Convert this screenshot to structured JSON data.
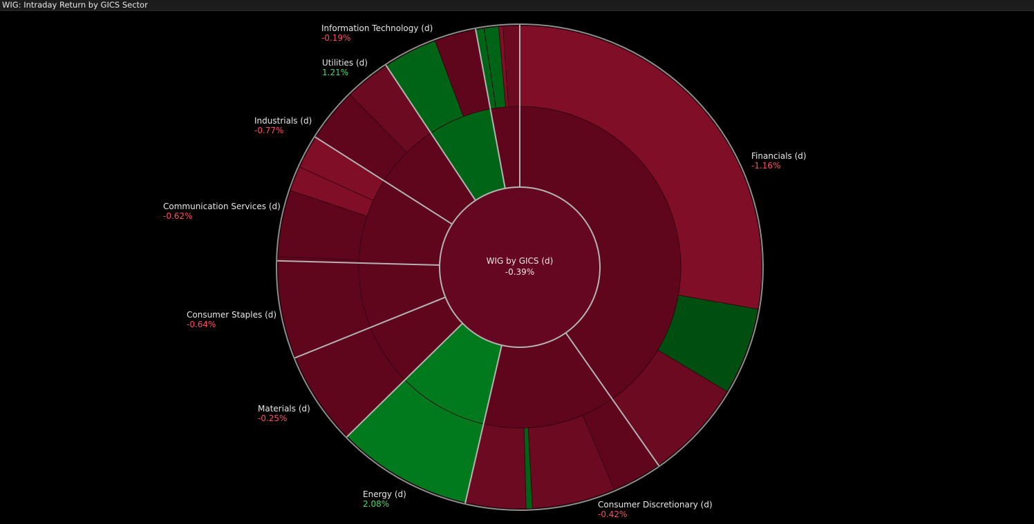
{
  "window": {
    "title": "WIG: Intraday Return by GICS Sector"
  },
  "colors": {
    "background": "#000000",
    "positive_text": "#4cd964",
    "negative_text": "#ff4d5e",
    "label_text": "#e8e8e8",
    "separator": "#b4b4b4"
  },
  "chart_data": {
    "type": "sunburst",
    "center": {
      "label": "WIG by GICS (d)",
      "value": "-0.39%",
      "return": -0.39
    },
    "sectors": [
      {
        "name": "Financials (d)",
        "value_text": "-1.16%",
        "return": -1.16
      },
      {
        "name": "Consumer Discretionary (d)",
        "value_text": "-0.42%",
        "return": -0.42
      },
      {
        "name": "Energy (d)",
        "value_text": "2.08%",
        "return": 2.08
      },
      {
        "name": "Materials (d)",
        "value_text": "-0.25%",
        "return": -0.25
      },
      {
        "name": "Consumer Staples (d)",
        "value_text": "-0.64%",
        "return": -0.64
      },
      {
        "name": "Communication Services (d)",
        "value_text": "-0.62%",
        "return": -0.62
      },
      {
        "name": "Industrials (d)",
        "value_text": "-0.77%",
        "return": -0.77
      },
      {
        "name": "Utilities (d)",
        "value_text": "1.21%",
        "return": 1.21
      },
      {
        "name": "Information Technology (d)",
        "value_text": "-0.19%",
        "return": -0.19
      }
    ]
  }
}
